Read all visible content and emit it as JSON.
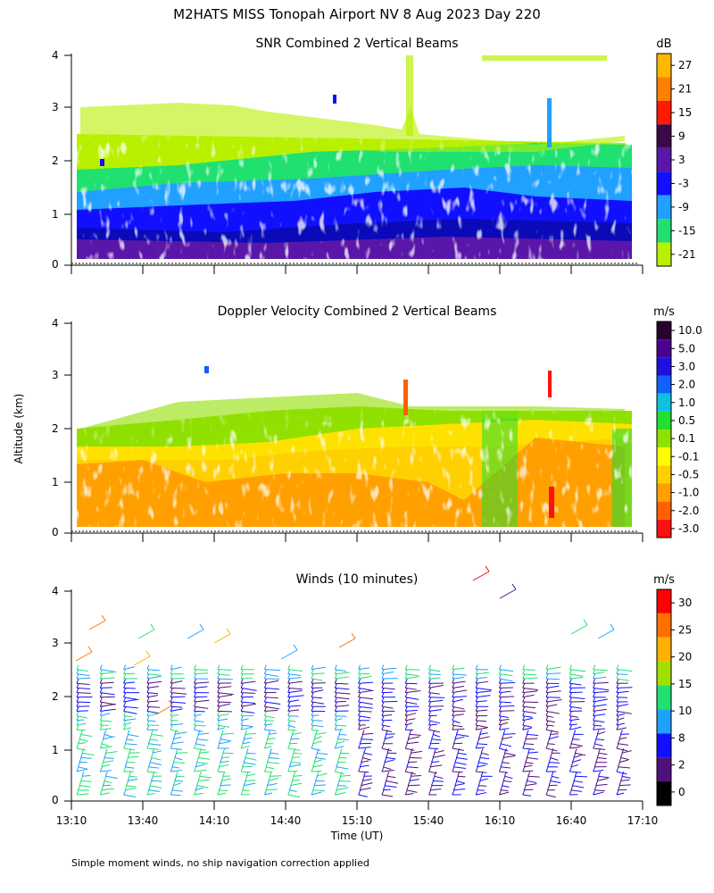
{
  "title": "M2HATS MISS Tonopah Airport NV   8 Aug 2023 Day 220",
  "ylabel": "Altitude (km)",
  "xlabel": "Time (UT)",
  "footnote": "Simple moment winds, no ship navigation correction applied",
  "chart_data": [
    {
      "type": "heatmap",
      "title": "SNR Combined 2 Vertical Beams",
      "units": "dB",
      "x_ticks": [
        "13:10",
        "13:40",
        "14:10",
        "14:40",
        "15:10",
        "15:40",
        "16:10",
        "16:40",
        "17:10"
      ],
      "y_ticks": [
        "0",
        "1",
        "2",
        "3",
        "4"
      ],
      "ylim": [
        0,
        4
      ],
      "colorbar": {
        "labels": [
          "27",
          "21",
          "15",
          "9",
          "3",
          "-3",
          "-9",
          "-15",
          "-21"
        ],
        "colors": [
          "#ffb700",
          "#ff7f00",
          "#ff1a00",
          "#3a0a48",
          "#5a16a8",
          "#1010ff",
          "#20a0ff",
          "#20e070",
          "#b8f000"
        ]
      },
      "description_values": "SNR highest (purple/blue, -3 to 9 dB) below 1 km, decreasing to green/yellow (-15 to -21 dB) near 2-2.5 km; sparse echoes up to ~3 km."
    },
    {
      "type": "heatmap",
      "title": "Doppler Velocity Combined 2 Vertical Beams",
      "units": "m/s",
      "x_ticks": [
        "13:10",
        "13:40",
        "14:10",
        "14:40",
        "15:10",
        "15:40",
        "16:10",
        "16:40",
        "17:10"
      ],
      "y_ticks": [
        "0",
        "1",
        "2",
        "3",
        "4"
      ],
      "ylim": [
        0,
        4
      ],
      "colorbar": {
        "labels": [
          "10.0",
          "5.0",
          "3.0",
          "2.0",
          "1.0",
          "0.5",
          "0.1",
          "-0.1",
          "-0.5",
          "-1.0",
          "-2.0",
          "-3.0"
        ],
        "colors": [
          "#2a0030",
          "#4a0090",
          "#2010e0",
          "#1060ff",
          "#10c0e0",
          "#20e030",
          "#90e000",
          "#ffff00",
          "#ffd000",
          "#ffa000",
          "#ff6000",
          "#ff1010"
        ]
      },
      "description_values": "Mostly weak downward motion (-0.5 to -2.0 m/s, orange) below 1.5 km, near zero (yellow-green) aloft to ~2.3 km."
    },
    {
      "type": "wind-barbs",
      "title": "Winds (10 minutes)",
      "units": "m/s",
      "x_ticks": [
        "13:10",
        "13:40",
        "14:10",
        "14:40",
        "15:10",
        "15:40",
        "16:10",
        "16:40",
        "17:10"
      ],
      "y_ticks": [
        "0",
        "1",
        "2",
        "3",
        "4"
      ],
      "ylim": [
        0,
        4
      ],
      "colorbar": {
        "labels": [
          "30",
          "25",
          "20",
          "15",
          "10",
          "8",
          "2",
          "0"
        ],
        "colors": [
          "#ff0000",
          "#ff7000",
          "#ffb000",
          "#a0e000",
          "#20e070",
          "#20a0ff",
          "#1010ff",
          "#50107a",
          "#000000"
        ]
      },
      "description_values": "Profiles every 10 minutes from 13:10 to 17:10; speeds mostly 8-15 m/s (blue/green) below 2.5 km, stronger barbs (20-30 m/s) above 2.5 km."
    }
  ]
}
